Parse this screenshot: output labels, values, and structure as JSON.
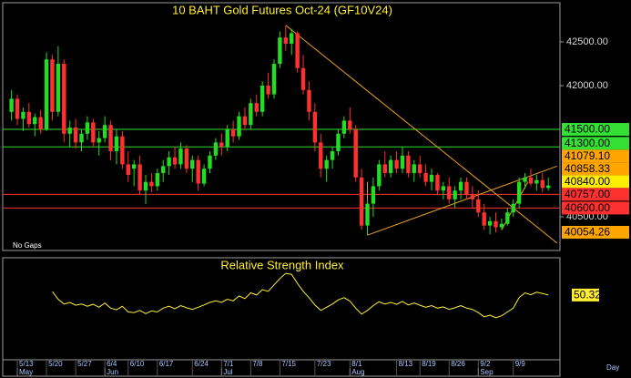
{
  "chart_data": [
    {
      "type": "candlestick",
      "title": "10 BAHT  Gold Futures Oct-24  (GF10V24)",
      "annotation": "No Gaps",
      "up_color": "#22dd22",
      "down_color": "#ff3030",
      "xlim": [
        -1.5,
        94
      ],
      "ylim": [
        40115,
        42948
      ],
      "yticks": [
        {
          "value": 42500,
          "label": "42500.00"
        },
        {
          "value": 42000,
          "label": "42000.00"
        },
        {
          "value": 40500,
          "label": "40500.00"
        }
      ],
      "levels": [
        {
          "value": 41500,
          "label": "41500.00",
          "color": "#33e033",
          "line": true
        },
        {
          "value": 41300,
          "label": "41300.00",
          "color": "#33e033",
          "line": true
        },
        {
          "value": 41079.1,
          "label": "41079.10",
          "color": "#ffa500",
          "line": false
        },
        {
          "value": 40858.33,
          "label": "40858.33",
          "color": "#ffa500",
          "line": false
        },
        {
          "value": 40840,
          "label": "40840.00",
          "color": "#ffee00",
          "line": false
        },
        {
          "value": 40757,
          "label": "40757.00",
          "color": "#ff3030",
          "line": true
        },
        {
          "value": 40600,
          "label": "40600.00",
          "color": "#ff3030",
          "line": true
        },
        {
          "value": 40054.26,
          "label": "40054.26",
          "color": "#ffa500",
          "line": false
        }
      ],
      "trend_color": "#e8a020",
      "trend_lines": [
        {
          "x": [
            47,
            93.5
          ],
          "y": [
            42690,
            40200
          ]
        },
        {
          "x": [
            61,
            93.5
          ],
          "y": [
            40290,
            41079.1
          ]
        },
        {
          "x": [
            61,
            61
          ],
          "y": [
            40290,
            40900
          ]
        },
        {
          "x": [
            84,
            88.5
          ],
          "y": [
            40350,
            40900
          ]
        }
      ],
      "open": [
        41700,
        41850,
        41620,
        41700,
        41560,
        41640,
        41500,
        42300,
        41700,
        42250,
        41450,
        41520,
        41350,
        41450,
        41580,
        41350,
        41400,
        41550,
        41250,
        41420,
        41100,
        41050,
        41100,
        40800,
        40900,
        40850,
        41000,
        41080,
        41180,
        41100,
        41280,
        41050,
        41150,
        40880,
        41050,
        41200,
        41350,
        41300,
        41500,
        41420,
        41650,
        41550,
        41800,
        41700,
        42000,
        41900,
        42250,
        42550,
        42480,
        42600,
        42200,
        41950,
        41700,
        41350,
        41050,
        41150,
        41250,
        41450,
        41600,
        41500,
        40950,
        40400,
        40650,
        40850,
        41100,
        41000,
        41150,
        41050,
        41200,
        41000,
        41100,
        41000,
        40900,
        40980,
        40800,
        40850,
        40700,
        40800,
        40900,
        40750,
        40700,
        40550,
        40400,
        40450,
        40380,
        40420,
        40550,
        40650,
        40900,
        40950,
        40880,
        40920,
        40830
      ],
      "high": [
        41950,
        41900,
        41750,
        41800,
        41680,
        41720,
        42380,
        42350,
        42450,
        42300,
        41600,
        41620,
        41500,
        41650,
        41620,
        41480,
        41650,
        41600,
        41500,
        41480,
        41250,
        41150,
        41200,
        40980,
        41000,
        41050,
        41150,
        41250,
        41300,
        41350,
        41320,
        41200,
        41200,
        41100,
        41250,
        41400,
        41450,
        41550,
        41600,
        41700,
        41750,
        41850,
        41900,
        42050,
        42150,
        42300,
        42620,
        42690,
        42650,
        42620,
        42350,
        42050,
        41800,
        41450,
        41200,
        41300,
        41500,
        41650,
        41750,
        41550,
        41050,
        40700,
        40950,
        41150,
        41250,
        41200,
        41250,
        41300,
        41250,
        41150,
        41200,
        41100,
        41050,
        41000,
        40900,
        40950,
        40850,
        40950,
        40950,
        40850,
        40800,
        40650,
        40500,
        40550,
        40480,
        40600,
        40700,
        40950,
        41000,
        41050,
        40980,
        41000,
        40950
      ],
      "low": [
        41600,
        41550,
        41480,
        41520,
        41420,
        41450,
        41480,
        41600,
        41650,
        41350,
        41300,
        41280,
        41250,
        41380,
        41300,
        41200,
        41350,
        41150,
        41100,
        41050,
        40900,
        40850,
        40750,
        40650,
        40780,
        40800,
        40900,
        40980,
        41050,
        41050,
        41000,
        40900,
        40800,
        40850,
        41000,
        41150,
        41200,
        41250,
        41350,
        41380,
        41500,
        41500,
        41650,
        41650,
        41850,
        41850,
        42200,
        42400,
        42350,
        42150,
        41900,
        41600,
        41250,
        40950,
        40900,
        41050,
        41200,
        41400,
        41450,
        40900,
        40350,
        40290,
        40500,
        40800,
        40950,
        40950,
        41000,
        41000,
        40950,
        40900,
        40950,
        40850,
        40800,
        40750,
        40700,
        40650,
        40600,
        40700,
        40700,
        40600,
        40500,
        40350,
        40300,
        40320,
        40350,
        40400,
        40500,
        40600,
        40820,
        40850,
        40800,
        40780,
        40800
      ],
      "close": [
        41850,
        41620,
        41700,
        41560,
        41640,
        41500,
        42300,
        41700,
        42250,
        41450,
        41520,
        41350,
        41450,
        41580,
        41350,
        41400,
        41550,
        41250,
        41420,
        41100,
        40980,
        41100,
        40800,
        40900,
        40850,
        41000,
        41080,
        41180,
        41100,
        41280,
        41050,
        41150,
        40880,
        41050,
        41200,
        41350,
        41300,
        41500,
        41420,
        41650,
        41550,
        41800,
        41700,
        42000,
        41900,
        42250,
        42550,
        42480,
        42600,
        42200,
        41950,
        41700,
        41350,
        41050,
        41150,
        41250,
        41450,
        41600,
        41500,
        40950,
        40400,
        40650,
        40850,
        41100,
        41000,
        41150,
        41050,
        41200,
        41000,
        41100,
        41000,
        40900,
        40980,
        40800,
        40850,
        40700,
        40800,
        40900,
        40750,
        40700,
        40550,
        40400,
        40450,
        40380,
        40420,
        40550,
        40650,
        40900,
        40950,
        40880,
        40920,
        40830,
        40858.33
      ]
    },
    {
      "type": "line",
      "title": "Relative Strength Index",
      "x_label": "Day",
      "color": "#ffee33",
      "xlim": [
        -1.5,
        94
      ],
      "ylim": [
        30,
        62
      ],
      "xticks": [
        {
          "value": 1,
          "label": "5/13"
        },
        {
          "value": 6,
          "label": "5/20"
        },
        {
          "value": 11,
          "label": "5/27"
        },
        {
          "value": 16,
          "label": "6/4"
        },
        {
          "value": 20,
          "label": "6/10"
        },
        {
          "value": 25,
          "label": "6/17"
        },
        {
          "value": 31,
          "label": "6/24"
        },
        {
          "value": 36,
          "label": "7/1"
        },
        {
          "value": 41,
          "label": "7/8"
        },
        {
          "value": 46,
          "label": "7/15"
        },
        {
          "value": 52,
          "label": "7/23"
        },
        {
          "value": 58,
          "label": "8/1"
        },
        {
          "value": 66,
          "label": "8/13"
        },
        {
          "value": 70,
          "label": "8/19"
        },
        {
          "value": 75,
          "label": "8/26"
        },
        {
          "value": 80,
          "label": "9/2"
        },
        {
          "value": 86,
          "label": "9/9"
        }
      ],
      "month_ticks": [
        {
          "value": 1,
          "label": "May"
        },
        {
          "value": 16,
          "label": "Jun"
        },
        {
          "value": 36,
          "label": "Jul"
        },
        {
          "value": 58,
          "label": "Aug"
        },
        {
          "value": 80,
          "label": "Sep"
        }
      ],
      "values": [
        null,
        null,
        null,
        null,
        null,
        null,
        null,
        51.4,
        49,
        47.5,
        48,
        47.1,
        47.5,
        46.8,
        47.4,
        46.5,
        47.8,
        46.2,
        45.7,
        46.8,
        45,
        44.8,
        45.5,
        44.5,
        45.3,
        45,
        46.2,
        46.8,
        46,
        47,
        46.3,
        45.8,
        46.5,
        47.2,
        48,
        48.5,
        48,
        49,
        48.5,
        50,
        49.2,
        51,
        50.3,
        52,
        51.5,
        53.5,
        55.5,
        57.1,
        56.8,
        54,
        51.5,
        49.5,
        47.2,
        45.5,
        46.5,
        47.5,
        48.8,
        49.5,
        48.4,
        46.2,
        44.3,
        45.5,
        47,
        48.2,
        47.5,
        48,
        47.4,
        48.3,
        47.2,
        47.8,
        47.1,
        46.5,
        47,
        46.2,
        46.6,
        45.8,
        46.3,
        47,
        46.2,
        45.8,
        44.8,
        43.5,
        44,
        43.2,
        43.8,
        45,
        46.2,
        49.5,
        51,
        50.4,
        51.2,
        50.8,
        50.32
      ]
    }
  ]
}
